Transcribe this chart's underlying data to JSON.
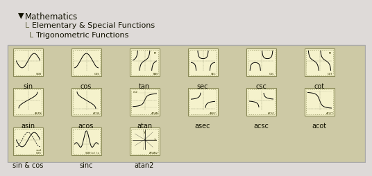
{
  "bg_color": "#cdc9a5",
  "panel_bg": "#cdc9a5",
  "icon_bg": "#f5f2cc",
  "icon_border": "#888855",
  "text_color": "#111100",
  "fig_bg": "#dedad8",
  "icons": [
    {
      "label": "sin",
      "row": 0,
      "col": 0,
      "shape": "sin",
      "func_label": "SIN"
    },
    {
      "label": "cos",
      "row": 0,
      "col": 1,
      "shape": "cos",
      "func_label": "COS"
    },
    {
      "label": "tan",
      "row": 0,
      "col": 2,
      "shape": "tan",
      "func_label": "TAN"
    },
    {
      "label": "sec",
      "row": 0,
      "col": 3,
      "shape": "sec",
      "func_label": "SEC"
    },
    {
      "label": "csc",
      "row": 0,
      "col": 4,
      "shape": "csc",
      "func_label": "CSC"
    },
    {
      "label": "cot",
      "row": 0,
      "col": 5,
      "shape": "cot",
      "func_label": "COT"
    },
    {
      "label": "asin",
      "row": 1,
      "col": 0,
      "shape": "asin",
      "func_label": "ASIN"
    },
    {
      "label": "acos",
      "row": 1,
      "col": 1,
      "shape": "acos",
      "func_label": "ACOS"
    },
    {
      "label": "atan",
      "row": 1,
      "col": 2,
      "shape": "atan",
      "func_label": "ATAN"
    },
    {
      "label": "asec",
      "row": 1,
      "col": 3,
      "shape": "asec",
      "func_label": "ASEC"
    },
    {
      "label": "acsc",
      "row": 1,
      "col": 4,
      "shape": "acsc",
      "func_label": "ACSC"
    },
    {
      "label": "acot",
      "row": 1,
      "col": 5,
      "shape": "acot",
      "func_label": "ACOT"
    },
    {
      "label": "sin & cos",
      "row": 2,
      "col": 0,
      "shape": "sincos",
      "func_label": "SIN\nCOS"
    },
    {
      "label": "sinc",
      "row": 2,
      "col": 1,
      "shape": "sinc",
      "func_label": "SIN(x)/x"
    },
    {
      "label": "atan2",
      "row": 2,
      "col": 2,
      "shape": "atan2",
      "func_label": "ATAN2"
    }
  ]
}
